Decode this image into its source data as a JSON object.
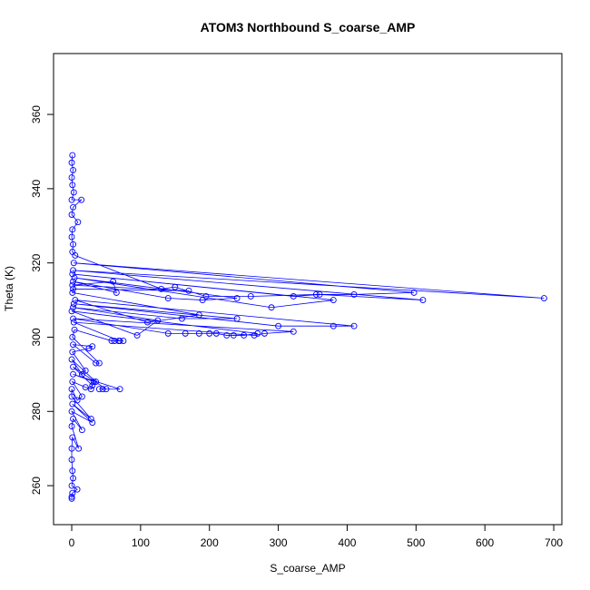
{
  "chart_data": {
    "type": "line",
    "title": "ATOM3 Northbound S_coarse_AMP",
    "x_label": "S_coarse_AMP",
    "y_label": "Theta (K)",
    "color": "#0000ff",
    "markers": true,
    "xlim": [
      -26.4,
      711.8
    ],
    "ylim": [
      249.5,
      376.4
    ],
    "xticks": [
      0,
      100,
      200,
      300,
      400,
      500,
      600,
      700
    ],
    "yticks": [
      260,
      280,
      300,
      320,
      340,
      360
    ],
    "series": [
      {
        "name": "S_coarse_AMP",
        "x": [
          1,
          0,
          2,
          0,
          1,
          3,
          0,
          14,
          2,
          0,
          9,
          1,
          0,
          2,
          1,
          5,
          130,
          150,
          195,
          260,
          355,
          410,
          497,
          3,
          686,
          2,
          510,
          360,
          322,
          1,
          380,
          290,
          4,
          240,
          190,
          140,
          2,
          65,
          60,
          1,
          170,
          2,
          1,
          185,
          110,
          5,
          410,
          380,
          300,
          3,
          240,
          160,
          2,
          125,
          95,
          0,
          270,
          250,
          235,
          225,
          210,
          200,
          185,
          165,
          140,
          2,
          322,
          280,
          265,
          3,
          70,
          75,
          68,
          62,
          58,
          4,
          1,
          40,
          35,
          2,
          30,
          25,
          1,
          20,
          15,
          0,
          35,
          30,
          2,
          50,
          45,
          40,
          70,
          2,
          32,
          28,
          20,
          1,
          15,
          8,
          0,
          0,
          28,
          1,
          30,
          0,
          15,
          2,
          0,
          10,
          1,
          0,
          0,
          1,
          2,
          0,
          8,
          1,
          0,
          0
        ],
        "values": [
          349,
          347,
          345,
          343,
          341,
          339,
          337,
          337,
          335,
          333,
          331,
          329,
          327,
          325,
          323,
          322,
          313,
          313.5,
          311,
          311,
          311.5,
          311.5,
          312,
          320,
          310.5,
          318,
          310,
          311.5,
          311,
          317,
          310,
          308,
          316,
          310.5,
          310,
          310.5,
          315,
          312,
          315,
          314,
          312.5,
          313,
          312,
          306,
          304,
          310,
          303,
          303,
          303,
          309,
          305,
          305,
          308,
          304.5,
          300.5,
          307,
          301,
          300.5,
          300.5,
          300.5,
          301,
          301,
          301,
          301,
          301,
          305,
          301.5,
          301,
          300.5,
          304,
          299,
          299,
          299,
          299,
          299,
          302,
          300,
          293,
          293,
          298,
          297.5,
          297,
          296,
          291,
          290,
          294,
          288,
          287,
          292,
          286,
          286,
          286,
          286,
          290,
          288,
          286,
          286.5,
          288,
          284,
          283,
          286,
          284,
          278,
          282,
          277,
          280,
          275,
          278,
          276,
          270,
          273,
          270,
          267,
          264,
          262,
          260,
          259,
          258,
          257,
          256.5
        ]
      }
    ]
  }
}
